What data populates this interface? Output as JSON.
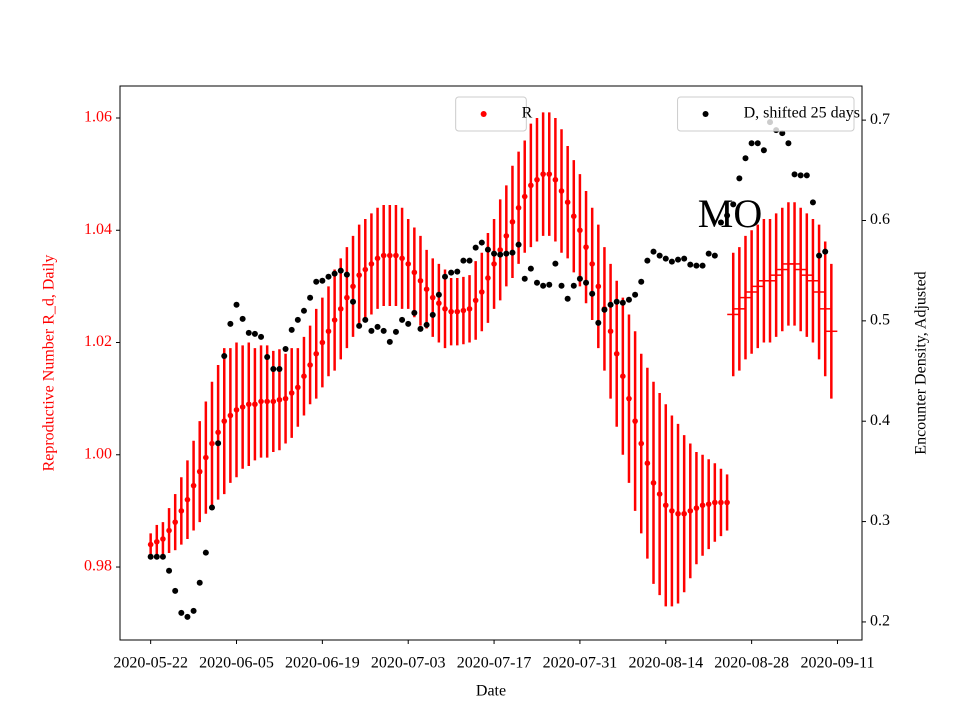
{
  "chart_data": {
    "type": "errorbar",
    "annotation": "MO",
    "xlabel": "Date",
    "ylabel": "Reproductive Number R_d, Daily",
    "ylabel_color": "#ff0000",
    "y2label": "Encounter Density, Adjusted",
    "x": [
      "2020-05-22",
      "2020-05-23",
      "2020-05-24",
      "2020-05-25",
      "2020-05-26",
      "2020-05-27",
      "2020-05-28",
      "2020-05-29",
      "2020-05-30",
      "2020-05-31",
      "2020-06-01",
      "2020-06-02",
      "2020-06-03",
      "2020-06-04",
      "2020-06-05",
      "2020-06-06",
      "2020-06-07",
      "2020-06-08",
      "2020-06-09",
      "2020-06-10",
      "2020-06-11",
      "2020-06-12",
      "2020-06-13",
      "2020-06-14",
      "2020-06-15",
      "2020-06-16",
      "2020-06-17",
      "2020-06-18",
      "2020-06-19",
      "2020-06-20",
      "2020-06-21",
      "2020-06-22",
      "2020-06-23",
      "2020-06-24",
      "2020-06-25",
      "2020-06-26",
      "2020-06-27",
      "2020-06-28",
      "2020-06-29",
      "2020-06-30",
      "2020-07-01",
      "2020-07-02",
      "2020-07-03",
      "2020-07-04",
      "2020-07-05",
      "2020-07-06",
      "2020-07-07",
      "2020-07-08",
      "2020-07-09",
      "2020-07-10",
      "2020-07-11",
      "2020-07-12",
      "2020-07-13",
      "2020-07-14",
      "2020-07-15",
      "2020-07-16",
      "2020-07-17",
      "2020-07-18",
      "2020-07-19",
      "2020-07-20",
      "2020-07-21",
      "2020-07-22",
      "2020-07-23",
      "2020-07-24",
      "2020-07-25",
      "2020-07-26",
      "2020-07-27",
      "2020-07-28",
      "2020-07-29",
      "2020-07-30",
      "2020-07-31",
      "2020-08-01",
      "2020-08-02",
      "2020-08-03",
      "2020-08-04",
      "2020-08-05",
      "2020-08-06",
      "2020-08-07",
      "2020-08-08",
      "2020-08-09",
      "2020-08-10",
      "2020-08-11",
      "2020-08-12",
      "2020-08-13",
      "2020-08-14",
      "2020-08-15",
      "2020-08-16",
      "2020-08-17",
      "2020-08-18",
      "2020-08-19",
      "2020-08-20",
      "2020-08-21",
      "2020-08-22",
      "2020-08-23",
      "2020-08-24",
      "2020-08-25",
      "2020-08-26",
      "2020-08-27",
      "2020-08-28",
      "2020-08-29",
      "2020-08-30",
      "2020-08-31",
      "2020-09-01",
      "2020-09-02",
      "2020-09-03",
      "2020-09-04",
      "2020-09-05",
      "2020-09-06",
      "2020-09-07",
      "2020-09-08",
      "2020-09-09",
      "2020-09-10"
    ],
    "xlim": [
      "2020-05-17",
      "2020-09-15"
    ],
    "xticks": [
      "2020-05-22",
      "2020-06-05",
      "2020-06-19",
      "2020-07-03",
      "2020-07-17",
      "2020-07-31",
      "2020-08-14",
      "2020-08-28",
      "2020-09-11"
    ],
    "ylim": [
      0.967,
      1.0657
    ],
    "yticks": [
      0.98,
      {
        "value": 1,
        "label": "1.00"
      },
      1.02,
      1.04,
      1.06
    ],
    "y2lim": [
      0.182,
      0.734
    ],
    "y2ticks": [
      0.2,
      0.3,
      0.4,
      0.5,
      0.6,
      0.7
    ],
    "series": [
      {
        "name": "R",
        "color": "#ff0000",
        "marker": "o",
        "legend": "upper center",
        "values": [
          0.984,
          0.9845,
          0.985,
          0.9865,
          0.988,
          0.99,
          0.992,
          0.9945,
          0.997,
          0.9995,
          1.002,
          1.004,
          1.006,
          1.007,
          1.008,
          1.0085,
          1.009,
          1.009,
          1.0095,
          1.0095,
          1.0095,
          1.0098,
          1.01,
          1.011,
          1.012,
          1.014,
          1.016,
          1.018,
          1.02,
          1.022,
          1.024,
          1.026,
          1.028,
          1.03,
          1.032,
          1.033,
          1.034,
          1.035,
          1.0355,
          1.0355,
          1.0355,
          1.035,
          1.034,
          1.0325,
          1.031,
          1.0295,
          1.028,
          1.027,
          1.026,
          1.0255,
          1.0255,
          1.0257,
          1.026,
          1.0275,
          1.029,
          1.0315,
          1.034,
          1.0365,
          1.039,
          1.0415,
          1.044,
          1.046,
          1.048,
          1.049,
          1.05,
          1.05,
          1.049,
          1.047,
          1.045,
          1.0425,
          1.04,
          1.037,
          1.034,
          1.03,
          1.026,
          1.022,
          1.018,
          1.014,
          1.01,
          1.006,
          1.002,
          0.9985,
          0.995,
          0.993,
          0.991,
          0.99,
          0.9895,
          0.9895,
          0.99,
          0.9905,
          0.991,
          0.9912,
          0.9915,
          0.9915,
          0.9915,
          null,
          null,
          null,
          null,
          null,
          null,
          null,
          null,
          null,
          null,
          null,
          null,
          null,
          null,
          null,
          null,
          null
        ],
        "errors": [
          0.002,
          0.003,
          0.003,
          0.004,
          0.005,
          0.006,
          0.007,
          0.008,
          0.009,
          0.01,
          0.011,
          0.012,
          0.013,
          0.012,
          0.012,
          0.011,
          0.011,
          0.01,
          0.01,
          0.01,
          0.009,
          0.009,
          0.008,
          0.008,
          0.007,
          0.007,
          0.007,
          0.008,
          0.008,
          0.008,
          0.009,
          0.009,
          0.009,
          0.009,
          0.009,
          0.009,
          0.009,
          0.009,
          0.009,
          0.009,
          0.009,
          0.009,
          0.008,
          0.008,
          0.008,
          0.007,
          0.007,
          0.007,
          0.007,
          0.006,
          0.006,
          0.006,
          0.006,
          0.007,
          0.007,
          0.008,
          0.008,
          0.009,
          0.009,
          0.01,
          0.01,
          0.01,
          0.011,
          0.011,
          0.011,
          0.011,
          0.011,
          0.011,
          0.01,
          0.01,
          0.01,
          0.01,
          0.01,
          0.011,
          0.011,
          0.012,
          0.013,
          0.014,
          0.015,
          0.016,
          0.016,
          0.017,
          0.018,
          0.018,
          0.018,
          0.017,
          0.016,
          0.014,
          0.012,
          0.01,
          0.009,
          0.008,
          0.007,
          0.006,
          0.005,
          null,
          null,
          null,
          null,
          null,
          null,
          null,
          null,
          null,
          null,
          null,
          null,
          null,
          null,
          null,
          null,
          null
        ]
      },
      {
        "color": "#ff0000",
        "marker": "_",
        "values": [
          null,
          null,
          null,
          null,
          null,
          null,
          null,
          null,
          null,
          null,
          null,
          null,
          null,
          null,
          null,
          null,
          null,
          null,
          null,
          null,
          null,
          null,
          null,
          null,
          null,
          null,
          null,
          null,
          null,
          null,
          null,
          null,
          null,
          null,
          null,
          null,
          null,
          null,
          null,
          null,
          null,
          null,
          null,
          null,
          null,
          null,
          null,
          null,
          null,
          null,
          null,
          null,
          null,
          null,
          null,
          null,
          null,
          null,
          null,
          null,
          null,
          null,
          null,
          null,
          null,
          null,
          null,
          null,
          null,
          null,
          null,
          null,
          null,
          null,
          null,
          null,
          null,
          null,
          null,
          null,
          null,
          null,
          null,
          null,
          null,
          null,
          null,
          null,
          null,
          null,
          null,
          null,
          null,
          null,
          null,
          1.025,
          1.026,
          1.028,
          1.029,
          1.03,
          1.031,
          1.031,
          1.032,
          1.033,
          1.034,
          1.034,
          1.033,
          1.032,
          1.031,
          1.029,
          1.026,
          1.022
        ],
        "errors": [
          null,
          null,
          null,
          null,
          null,
          null,
          null,
          null,
          null,
          null,
          null,
          null,
          null,
          null,
          null,
          null,
          null,
          null,
          null,
          null,
          null,
          null,
          null,
          null,
          null,
          null,
          null,
          null,
          null,
          null,
          null,
          null,
          null,
          null,
          null,
          null,
          null,
          null,
          null,
          null,
          null,
          null,
          null,
          null,
          null,
          null,
          null,
          null,
          null,
          null,
          null,
          null,
          null,
          null,
          null,
          null,
          null,
          null,
          null,
          null,
          null,
          null,
          null,
          null,
          null,
          null,
          null,
          null,
          null,
          null,
          null,
          null,
          null,
          null,
          null,
          null,
          null,
          null,
          null,
          null,
          null,
          null,
          null,
          null,
          null,
          null,
          null,
          null,
          null,
          null,
          null,
          null,
          null,
          null,
          null,
          0.011,
          0.011,
          0.011,
          0.011,
          0.011,
          0.011,
          0.011,
          0.011,
          0.011,
          0.011,
          0.011,
          0.011,
          0.011,
          0.011,
          0.012,
          0.012,
          0.012
        ]
      },
      {
        "name": "D, shifted 25 days",
        "color": "#000000",
        "marker": "o",
        "axis": "y2",
        "legend": "upper right",
        "values": [
          0.265,
          0.265,
          0.265,
          0.251,
          0.231,
          0.209,
          0.205,
          0.211,
          0.239,
          0.269,
          0.314,
          0.378,
          0.465,
          0.497,
          0.516,
          0.502,
          0.488,
          0.487,
          0.484,
          0.464,
          0.452,
          0.452,
          0.472,
          0.491,
          0.501,
          0.51,
          0.523,
          0.539,
          0.54,
          0.544,
          0.547,
          0.55,
          0.546,
          0.519,
          0.495,
          0.501,
          0.49,
          0.494,
          0.49,
          0.479,
          0.489,
          0.501,
          0.497,
          0.508,
          0.492,
          0.496,
          0.506,
          0.526,
          0.544,
          0.548,
          0.549,
          0.56,
          0.56,
          0.573,
          0.578,
          0.571,
          0.567,
          0.566,
          0.567,
          0.568,
          0.576,
          0.542,
          0.552,
          0.538,
          0.535,
          0.536,
          0.557,
          0.535,
          0.522,
          0.535,
          0.542,
          0.538,
          0.527,
          0.498,
          0.511,
          0.516,
          0.519,
          0.518,
          0.521,
          0.526,
          0.539,
          0.56,
          0.569,
          0.565,
          0.562,
          0.559,
          0.561,
          0.562,
          0.556,
          0.555,
          0.555,
          0.567,
          0.565,
          0.598,
          0.605,
          0.616,
          0.642,
          0.662,
          0.677,
          0.677,
          0.67,
          0.698,
          0.69,
          0.687,
          0.677,
          0.646,
          0.645,
          0.645,
          0.618,
          0.565,
          0.569,
          null
        ]
      }
    ]
  }
}
